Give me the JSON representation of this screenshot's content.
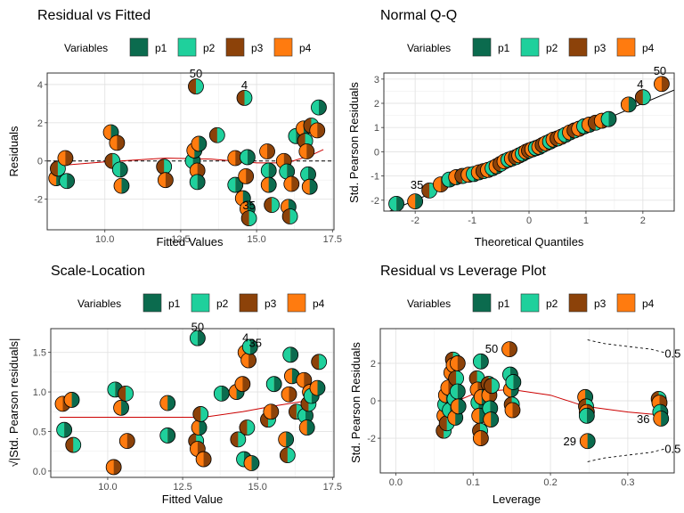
{
  "palette": {
    "p1": "#0b6b4e",
    "p2": "#1fd09c",
    "p3": "#8c4209",
    "p4": "#ff7b0f"
  },
  "legend": {
    "title": "Variables",
    "items": [
      "p1",
      "p2",
      "p3",
      "p4"
    ]
  },
  "chart_data": [
    {
      "id": "rvf",
      "type": "scatter",
      "title": "Residual vs Fitted",
      "xlabel": "Fitted Values",
      "ylabel": "Residuals",
      "xlim": [
        8.1,
        17.55
      ],
      "ylim": [
        -3.6,
        4.6
      ],
      "xticks": [
        10.0,
        12.5,
        15.0,
        17.5
      ],
      "xtick_labels": [
        "10.0",
        "12.5",
        "15.0",
        "17.5"
      ],
      "yticks": [
        -2,
        0,
        2,
        4
      ],
      "ytick_labels": [
        "-2",
        "0",
        "2",
        "4"
      ],
      "grid": true,
      "legend_position": "top",
      "reference_line": {
        "type": "horizontal",
        "y": 0,
        "style": "dashed"
      },
      "smooth": [
        [
          8.4,
          -0.25
        ],
        [
          10,
          -0.05
        ],
        [
          12,
          0.15
        ],
        [
          13.5,
          0.1
        ],
        [
          15,
          -0.1
        ],
        [
          16,
          -0.1
        ],
        [
          16.8,
          0.3
        ],
        [
          17.2,
          0.6
        ]
      ],
      "points": [
        {
          "x": 8.4,
          "y": -0.9
        },
        {
          "x": 8.45,
          "y": -0.4
        },
        {
          "x": 8.7,
          "y": 0.15
        },
        {
          "x": 8.75,
          "y": -1.05
        },
        {
          "x": 10.2,
          "y": 1.5
        },
        {
          "x": 10.25,
          "y": 0.0
        },
        {
          "x": 10.4,
          "y": 0.95
        },
        {
          "x": 10.5,
          "y": -0.45
        },
        {
          "x": 10.55,
          "y": -1.3
        },
        {
          "x": 11.95,
          "y": -0.3
        },
        {
          "x": 12.0,
          "y": -1.0
        },
        {
          "x": 12.9,
          "y": 0.0
        },
        {
          "x": 12.95,
          "y": 0.55
        },
        {
          "x": 13.0,
          "y": 3.9
        },
        {
          "x": 13.05,
          "y": -0.5
        },
        {
          "x": 13.05,
          "y": -1.1
        },
        {
          "x": 13.1,
          "y": 0.9
        },
        {
          "x": 13.7,
          "y": 1.35
        },
        {
          "x": 14.3,
          "y": 0.15
        },
        {
          "x": 14.3,
          "y": -1.25
        },
        {
          "x": 14.55,
          "y": -1.95
        },
        {
          "x": 14.6,
          "y": 3.3
        },
        {
          "x": 14.65,
          "y": -0.8
        },
        {
          "x": 14.7,
          "y": 0.2
        },
        {
          "x": 14.7,
          "y": -2.5
        },
        {
          "x": 14.75,
          "y": -3.0
        },
        {
          "x": 15.35,
          "y": 0.5
        },
        {
          "x": 15.4,
          "y": -0.5
        },
        {
          "x": 15.4,
          "y": -1.25
        },
        {
          "x": 15.5,
          "y": -2.3
        },
        {
          "x": 15.9,
          "y": 0.0
        },
        {
          "x": 16.0,
          "y": -0.55
        },
        {
          "x": 16.05,
          "y": -2.4
        },
        {
          "x": 16.1,
          "y": -2.9
        },
        {
          "x": 16.15,
          "y": -1.2
        },
        {
          "x": 16.3,
          "y": 1.3
        },
        {
          "x": 16.55,
          "y": 1.7
        },
        {
          "x": 16.6,
          "y": 1.05
        },
        {
          "x": 16.65,
          "y": 0.5
        },
        {
          "x": 16.7,
          "y": -0.7
        },
        {
          "x": 16.75,
          "y": -1.35
        },
        {
          "x": 16.8,
          "y": 1.85
        },
        {
          "x": 17.0,
          "y": 1.6
        },
        {
          "x": 17.05,
          "y": 2.8
        }
      ],
      "labels": [
        {
          "x": 13.0,
          "y": 3.9,
          "text": "50",
          "dx": 0,
          "dy": -10
        },
        {
          "x": 14.6,
          "y": 3.3,
          "text": "4",
          "dx": 0,
          "dy": -10
        },
        {
          "x": 14.75,
          "y": -3.0,
          "text": "35",
          "dx": 0,
          "dy": -10
        }
      ]
    },
    {
      "id": "qq",
      "type": "scatter",
      "title": "Normal Q-Q",
      "xlabel": "Theoretical Quantiles",
      "ylabel": "Std. Pearson Residuals",
      "xlim": [
        -2.55,
        2.55
      ],
      "ylim": [
        -2.45,
        3.25
      ],
      "xticks": [
        -2,
        -1,
        0,
        1,
        2
      ],
      "xtick_labels": [
        "-2",
        "-1",
        "0",
        "1",
        "2"
      ],
      "yticks": [
        -2,
        -1,
        0,
        1,
        2,
        3
      ],
      "ytick_labels": [
        "-2",
        "-1",
        "0",
        "1",
        "2",
        "3"
      ],
      "grid": true,
      "legend_position": "top",
      "reference_line": {
        "type": "abline",
        "intercept": 0,
        "slope": 1,
        "style": "solid"
      },
      "points": [
        {
          "x": -2.33,
          "y": -2.15
        },
        {
          "x": -2.0,
          "y": -2.05
        },
        {
          "x": -1.75,
          "y": -1.6
        },
        {
          "x": -1.55,
          "y": -1.35
        },
        {
          "x": -1.4,
          "y": -1.15
        },
        {
          "x": -1.28,
          "y": -1.05
        },
        {
          "x": -1.17,
          "y": -1.0
        },
        {
          "x": -1.06,
          "y": -0.95
        },
        {
          "x": -0.97,
          "y": -0.92
        },
        {
          "x": -0.88,
          "y": -0.85
        },
        {
          "x": -0.8,
          "y": -0.8
        },
        {
          "x": -0.72,
          "y": -0.75
        },
        {
          "x": -0.64,
          "y": -0.68
        },
        {
          "x": -0.57,
          "y": -0.6
        },
        {
          "x": -0.5,
          "y": -0.5
        },
        {
          "x": -0.43,
          "y": -0.4
        },
        {
          "x": -0.36,
          "y": -0.33
        },
        {
          "x": -0.3,
          "y": -0.28
        },
        {
          "x": -0.23,
          "y": -0.22
        },
        {
          "x": -0.17,
          "y": -0.15
        },
        {
          "x": -0.11,
          "y": -0.08
        },
        {
          "x": -0.05,
          "y": 0.0
        },
        {
          "x": 0.0,
          "y": 0.05
        },
        {
          "x": 0.06,
          "y": 0.1
        },
        {
          "x": 0.12,
          "y": 0.15
        },
        {
          "x": 0.18,
          "y": 0.2
        },
        {
          "x": 0.24,
          "y": 0.28
        },
        {
          "x": 0.3,
          "y": 0.35
        },
        {
          "x": 0.37,
          "y": 0.42
        },
        {
          "x": 0.43,
          "y": 0.5
        },
        {
          "x": 0.5,
          "y": 0.55
        },
        {
          "x": 0.57,
          "y": 0.62
        },
        {
          "x": 0.64,
          "y": 0.7
        },
        {
          "x": 0.72,
          "y": 0.8
        },
        {
          "x": 0.8,
          "y": 0.88
        },
        {
          "x": 0.88,
          "y": 0.95
        },
        {
          "x": 0.97,
          "y": 1.05
        },
        {
          "x": 1.06,
          "y": 1.12
        },
        {
          "x": 1.17,
          "y": 1.2
        },
        {
          "x": 1.28,
          "y": 1.28
        },
        {
          "x": 1.4,
          "y": 1.35
        },
        {
          "x": 1.75,
          "y": 1.95
        },
        {
          "x": 2.0,
          "y": 2.25
        },
        {
          "x": 2.33,
          "y": 2.8
        }
      ],
      "labels": [
        {
          "x": -1.75,
          "y": -1.6,
          "text": "35",
          "dx": -14,
          "dy": -2
        },
        {
          "x": 2.0,
          "y": 2.25,
          "text": "4",
          "dx": -3,
          "dy": -10
        },
        {
          "x": 2.33,
          "y": 2.8,
          "text": "50",
          "dx": -2,
          "dy": -10
        }
      ]
    },
    {
      "id": "sl",
      "type": "scatter",
      "title": "Scale-Location",
      "xlabel": "Fitted Value",
      "ylabel": "√|Std. Pearson residuals|",
      "xlim": [
        8.1,
        17.55
      ],
      "ylim": [
        -0.08,
        1.8
      ],
      "xticks": [
        10.0,
        12.5,
        15.0,
        17.5
      ],
      "xtick_labels": [
        "10.0",
        "12.5",
        "15.0",
        "17.5"
      ],
      "yticks": [
        0.0,
        0.5,
        1.0,
        1.5
      ],
      "ytick_labels": [
        "0.0",
        "0.5",
        "1.0",
        "1.5"
      ],
      "grid": true,
      "legend_position": "top",
      "smooth": [
        [
          8.4,
          0.68
        ],
        [
          10,
          0.68
        ],
        [
          12,
          0.68
        ],
        [
          13.2,
          0.68
        ],
        [
          14.5,
          0.75
        ],
        [
          15.5,
          0.82
        ],
        [
          16.5,
          0.88
        ],
        [
          17.0,
          0.9
        ]
      ],
      "points": [
        {
          "x": 8.5,
          "y": 0.85
        },
        {
          "x": 8.55,
          "y": 0.52
        },
        {
          "x": 8.8,
          "y": 0.9
        },
        {
          "x": 8.85,
          "y": 0.33
        },
        {
          "x": 10.2,
          "y": 0.05
        },
        {
          "x": 10.25,
          "y": 1.03
        },
        {
          "x": 10.45,
          "y": 0.8
        },
        {
          "x": 10.6,
          "y": 0.98
        },
        {
          "x": 10.65,
          "y": 0.38
        },
        {
          "x": 12.0,
          "y": 0.45
        },
        {
          "x": 12.0,
          "y": 0.86
        },
        {
          "x": 12.95,
          "y": 0.38
        },
        {
          "x": 13.0,
          "y": 0.28
        },
        {
          "x": 13.0,
          "y": 1.68
        },
        {
          "x": 13.05,
          "y": 0.55
        },
        {
          "x": 13.1,
          "y": 0.72
        },
        {
          "x": 13.2,
          "y": 0.15
        },
        {
          "x": 13.8,
          "y": 0.98
        },
        {
          "x": 14.3,
          "y": 1.0
        },
        {
          "x": 14.35,
          "y": 0.4
        },
        {
          "x": 14.5,
          "y": 1.1
        },
        {
          "x": 14.55,
          "y": 0.15
        },
        {
          "x": 14.6,
          "y": 1.5
        },
        {
          "x": 14.65,
          "y": 0.55
        },
        {
          "x": 14.7,
          "y": 1.4
        },
        {
          "x": 14.75,
          "y": 1.57
        },
        {
          "x": 14.8,
          "y": 0.1
        },
        {
          "x": 15.35,
          "y": 0.65
        },
        {
          "x": 15.45,
          "y": 0.75
        },
        {
          "x": 15.55,
          "y": 1.1
        },
        {
          "x": 15.95,
          "y": 0.4
        },
        {
          "x": 16.0,
          "y": 0.2
        },
        {
          "x": 16.05,
          "y": 0.97
        },
        {
          "x": 16.1,
          "y": 1.47
        },
        {
          "x": 16.15,
          "y": 1.2
        },
        {
          "x": 16.3,
          "y": 0.75
        },
        {
          "x": 16.55,
          "y": 1.15
        },
        {
          "x": 16.6,
          "y": 0.7
        },
        {
          "x": 16.65,
          "y": 0.55
        },
        {
          "x": 16.7,
          "y": 0.85
        },
        {
          "x": 16.75,
          "y": 1.0
        },
        {
          "x": 16.8,
          "y": 0.95
        },
        {
          "x": 17.0,
          "y": 1.05
        },
        {
          "x": 17.05,
          "y": 1.38
        }
      ],
      "labels": [
        {
          "x": 13.0,
          "y": 1.68,
          "text": "50",
          "dx": 0,
          "dy": -8
        },
        {
          "x": 14.6,
          "y": 1.5,
          "text": "4",
          "dx": 0,
          "dy": -12
        },
        {
          "x": 14.75,
          "y": 1.57,
          "text": "35",
          "dx": 6,
          "dy": 0
        }
      ]
    },
    {
      "id": "rvl",
      "type": "scatter",
      "title": "Residual vs Leverage Plot",
      "xlabel": "Leverage",
      "ylabel": "Std. Pearson Residuals",
      "xlim": [
        -0.02,
        0.36
      ],
      "ylim": [
        -3.85,
        3.85
      ],
      "xticks": [
        0.0,
        0.1,
        0.2,
        0.3
      ],
      "xtick_labels": [
        "0.0",
        "0.1",
        "0.2",
        "0.3"
      ],
      "yticks": [
        -2,
        0,
        2
      ],
      "ytick_labels": [
        "-2",
        "0",
        "2"
      ],
      "grid": true,
      "legend_position": "top",
      "smooth": [
        [
          0.06,
          -0.6
        ],
        [
          0.08,
          0.0
        ],
        [
          0.1,
          0.35
        ],
        [
          0.13,
          0.55
        ],
        [
          0.15,
          0.6
        ],
        [
          0.2,
          0.3
        ],
        [
          0.245,
          -0.3
        ],
        [
          0.3,
          -0.6
        ],
        [
          0.34,
          -0.75
        ]
      ],
      "cook_contours": [
        {
          "points": [
            [
              0.248,
              3.25
            ],
            [
              0.27,
              3.05
            ],
            [
              0.3,
              2.9
            ],
            [
              0.33,
              2.75
            ],
            [
              0.35,
              2.55
            ]
          ],
          "label": "0.5"
        },
        {
          "points": [
            [
              0.248,
              -3.25
            ],
            [
              0.27,
              -3.05
            ],
            [
              0.3,
              -2.9
            ],
            [
              0.33,
              -2.75
            ],
            [
              0.35,
              -2.55
            ]
          ],
          "label": "0.5"
        }
      ],
      "points": [
        {
          "x": 0.062,
          "y": -1.6
        },
        {
          "x": 0.063,
          "y": -0.8
        },
        {
          "x": 0.064,
          "y": -0.2
        },
        {
          "x": 0.065,
          "y": 0.3
        },
        {
          "x": 0.066,
          "y": -1.2
        },
        {
          "x": 0.068,
          "y": 0.7
        },
        {
          "x": 0.07,
          "y": -0.5
        },
        {
          "x": 0.072,
          "y": 1.5
        },
        {
          "x": 0.074,
          "y": 2.2
        },
        {
          "x": 0.075,
          "y": 1.9
        },
        {
          "x": 0.076,
          "y": 0.1
        },
        {
          "x": 0.077,
          "y": -0.9
        },
        {
          "x": 0.078,
          "y": 1.2
        },
        {
          "x": 0.08,
          "y": 2.0
        },
        {
          "x": 0.08,
          "y": 0.5
        },
        {
          "x": 0.081,
          "y": -0.3
        },
        {
          "x": 0.105,
          "y": 1.2
        },
        {
          "x": 0.106,
          "y": 0.6
        },
        {
          "x": 0.107,
          "y": -0.1
        },
        {
          "x": 0.108,
          "y": -0.8
        },
        {
          "x": 0.109,
          "y": -1.6
        },
        {
          "x": 0.11,
          "y": -2.0
        },
        {
          "x": 0.11,
          "y": 2.1
        },
        {
          "x": 0.111,
          "y": 0.2
        },
        {
          "x": 0.12,
          "y": 0.9
        },
        {
          "x": 0.121,
          "y": 0.3
        },
        {
          "x": 0.122,
          "y": -0.4
        },
        {
          "x": 0.123,
          "y": -1.0
        },
        {
          "x": 0.124,
          "y": 0.8
        },
        {
          "x": 0.147,
          "y": 2.75
        },
        {
          "x": 0.148,
          "y": 1.4
        },
        {
          "x": 0.149,
          "y": 0.6
        },
        {
          "x": 0.15,
          "y": -0.2
        },
        {
          "x": 0.151,
          "y": -0.5
        },
        {
          "x": 0.152,
          "y": 1.0
        },
        {
          "x": 0.245,
          "y": 0.2
        },
        {
          "x": 0.246,
          "y": -0.3
        },
        {
          "x": 0.247,
          "y": -0.6
        },
        {
          "x": 0.247,
          "y": -0.8
        },
        {
          "x": 0.248,
          "y": -2.15
        },
        {
          "x": 0.34,
          "y": 0.1
        },
        {
          "x": 0.341,
          "y": -0.1
        },
        {
          "x": 0.342,
          "y": -0.6
        },
        {
          "x": 0.343,
          "y": -0.95
        }
      ],
      "labels": [
        {
          "x": 0.147,
          "y": 2.75,
          "text": "50",
          "dx": -20,
          "dy": 4
        },
        {
          "x": 0.248,
          "y": -2.15,
          "text": "29",
          "dx": -20,
          "dy": 5
        },
        {
          "x": 0.343,
          "y": -0.95,
          "text": "36",
          "dx": -20,
          "dy": 5
        }
      ]
    }
  ]
}
